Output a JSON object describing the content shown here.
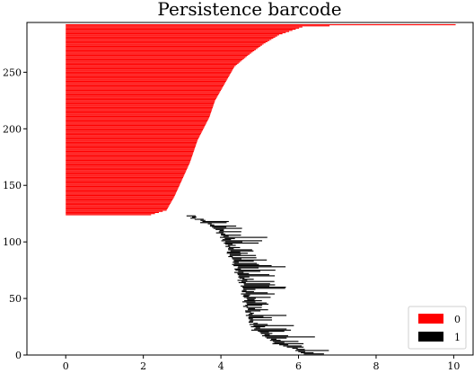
{
  "chart_data": {
    "type": "barcode",
    "title": "Persistence barcode",
    "xlabel": "",
    "ylabel": "",
    "xlim": [
      -1,
      10.5
    ],
    "ylim": [
      0,
      294
    ],
    "xticks": [
      0,
      2,
      4,
      6,
      8,
      10
    ],
    "yticks": [
      0,
      50,
      100,
      150,
      200,
      250
    ],
    "grid": false,
    "legend_position": "lower-right",
    "series": [
      {
        "name": "0",
        "color": "#ff0000",
        "index_range": [
          124,
          292
        ],
        "birth": 0,
        "death_profile": [
          [
            124,
            2.2
          ],
          [
            128,
            2.6
          ],
          [
            140,
            2.8
          ],
          [
            155,
            3.0
          ],
          [
            170,
            3.2
          ],
          [
            190,
            3.4
          ],
          [
            210,
            3.7
          ],
          [
            225,
            3.85
          ],
          [
            240,
            4.1
          ],
          [
            255,
            4.35
          ],
          [
            265,
            4.7
          ],
          [
            275,
            5.1
          ],
          [
            283,
            5.5
          ],
          [
            290,
            6.1
          ],
          [
            291,
            6.8
          ],
          [
            292,
            10.05
          ]
        ]
      },
      {
        "name": "1",
        "color": "#000000",
        "index_range": [
          1,
          123
        ],
        "birth_profile": [
          [
            1,
            6.1
          ],
          [
            5,
            5.9
          ],
          [
            10,
            5.4
          ],
          [
            15,
            5.2
          ],
          [
            22,
            4.85
          ],
          [
            30,
            4.75
          ],
          [
            40,
            4.65
          ],
          [
            50,
            4.6
          ],
          [
            60,
            4.55
          ],
          [
            70,
            4.45
          ],
          [
            80,
            4.35
          ],
          [
            90,
            4.2
          ],
          [
            100,
            4.1
          ],
          [
            110,
            3.9
          ],
          [
            116,
            3.6
          ],
          [
            120,
            3.35
          ],
          [
            123,
            3.1
          ]
        ],
        "bar_length_range": [
          0.1,
          1.2
        ]
      }
    ]
  }
}
